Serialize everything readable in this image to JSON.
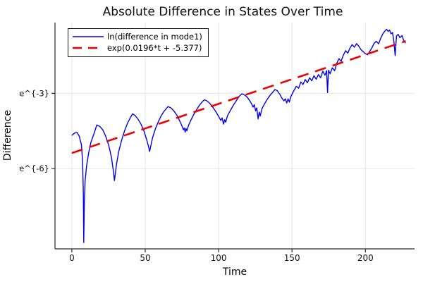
{
  "chart_data": {
    "type": "line",
    "title": "Absolute Difference in States Over Time",
    "xlabel": "Time",
    "ylabel": "Difference",
    "x_axis": {
      "lim": [
        -11.5,
        233.5
      ],
      "ticks": [
        {
          "value": 0,
          "label": "0"
        },
        {
          "value": 50,
          "label": "50"
        },
        {
          "value": 100,
          "label": "100"
        },
        {
          "value": 150,
          "label": "150"
        },
        {
          "value": 200,
          "label": "200"
        }
      ]
    },
    "y_axis": {
      "scale": "ln",
      "lim": [
        -9.2,
        -0.18
      ],
      "ticks": [
        {
          "value": -3,
          "label": "e^{-3}"
        },
        {
          "value": -6,
          "label": "e^{-6}"
        }
      ]
    },
    "grid": {
      "show": true,
      "color": "#e5e5e5"
    },
    "spine_color": "#2b2b2b",
    "legend": {
      "position": "upper-left",
      "background": "#ffffff",
      "border_color": "#1a1a1a"
    },
    "series": [
      {
        "name": "ln(difference in mode1)",
        "color": "#0000ee",
        "style": "solid",
        "width": 1.4,
        "points": [
          [
            0,
            -4.68
          ],
          [
            2,
            -4.58
          ],
          [
            3.5,
            -4.56
          ],
          [
            5,
            -4.7
          ],
          [
            6.5,
            -5.05
          ],
          [
            7.3,
            -5.7
          ],
          [
            7.8,
            -7.0
          ],
          [
            8.1,
            -8.95
          ],
          [
            8.5,
            -7.4
          ],
          [
            9,
            -6.5
          ],
          [
            10,
            -5.9
          ],
          [
            11.5,
            -5.35
          ],
          [
            13,
            -4.95
          ],
          [
            15,
            -4.62
          ],
          [
            17,
            -4.26
          ],
          [
            19,
            -4.32
          ],
          [
            21,
            -4.45
          ],
          [
            23,
            -4.7
          ],
          [
            25,
            -5.05
          ],
          [
            27,
            -5.55
          ],
          [
            28.5,
            -6.2
          ],
          [
            29,
            -6.48
          ],
          [
            29.6,
            -6.2
          ],
          [
            30.5,
            -5.8
          ],
          [
            32,
            -5.3
          ],
          [
            34,
            -4.85
          ],
          [
            36,
            -4.48
          ],
          [
            38,
            -4.18
          ],
          [
            40,
            -3.95
          ],
          [
            41.4,
            -3.82
          ],
          [
            43,
            -3.88
          ],
          [
            45,
            -4.02
          ],
          [
            47,
            -4.22
          ],
          [
            49,
            -4.48
          ],
          [
            51,
            -4.85
          ],
          [
            52.5,
            -5.18
          ],
          [
            53,
            -5.32
          ],
          [
            53.6,
            -5.15
          ],
          [
            55,
            -4.77
          ],
          [
            57,
            -4.4
          ],
          [
            59,
            -4.12
          ],
          [
            61,
            -3.88
          ],
          [
            63,
            -3.7
          ],
          [
            65.5,
            -3.53
          ],
          [
            67.5,
            -3.58
          ],
          [
            69.5,
            -3.7
          ],
          [
            71.5,
            -3.87
          ],
          [
            73.5,
            -4.1
          ],
          [
            75,
            -4.3
          ],
          [
            76,
            -4.45
          ],
          [
            76.6,
            -4.38
          ],
          [
            77.2,
            -4.55
          ],
          [
            77.8,
            -4.4
          ],
          [
            78.4,
            -4.5
          ],
          [
            79.5,
            -4.28
          ],
          [
            81,
            -4.08
          ],
          [
            83,
            -3.85
          ],
          [
            85,
            -3.65
          ],
          [
            87,
            -3.47
          ],
          [
            89,
            -3.33
          ],
          [
            90.4,
            -3.26
          ],
          [
            92,
            -3.3
          ],
          [
            94,
            -3.4
          ],
          [
            96,
            -3.55
          ],
          [
            98,
            -3.72
          ],
          [
            100,
            -3.92
          ],
          [
            101.5,
            -4.08
          ],
          [
            102.4,
            -3.98
          ],
          [
            103.3,
            -4.23
          ],
          [
            104.1,
            -4.05
          ],
          [
            104.8,
            -4.15
          ],
          [
            106,
            -3.9
          ],
          [
            108,
            -3.68
          ],
          [
            110,
            -3.48
          ],
          [
            112,
            -3.3
          ],
          [
            114,
            -3.12
          ],
          [
            115.8,
            -3.02
          ],
          [
            117.5,
            -3.06
          ],
          [
            119.5,
            -3.15
          ],
          [
            121,
            -3.28
          ],
          [
            122.5,
            -3.42
          ],
          [
            123.5,
            -3.55
          ],
          [
            124.3,
            -3.45
          ],
          [
            125.2,
            -3.7
          ],
          [
            126,
            -3.58
          ],
          [
            126.9,
            -4.02
          ],
          [
            127.7,
            -3.75
          ],
          [
            128.4,
            -3.9
          ],
          [
            129.5,
            -3.62
          ],
          [
            131,
            -3.45
          ],
          [
            133,
            -3.25
          ],
          [
            135,
            -3.08
          ],
          [
            137,
            -2.95
          ],
          [
            138.4,
            -2.85
          ],
          [
            140,
            -2.9
          ],
          [
            141.5,
            -3.02
          ],
          [
            143,
            -3.18
          ],
          [
            144.5,
            -3.3
          ],
          [
            145.5,
            -3.22
          ],
          [
            146.4,
            -3.39
          ],
          [
            147.3,
            -3.22
          ],
          [
            148.2,
            -3.35
          ],
          [
            149.3,
            -3.12
          ],
          [
            151,
            -2.92
          ],
          [
            153,
            -2.72
          ],
          [
            154.5,
            -2.8
          ],
          [
            156,
            -2.55
          ],
          [
            157.5,
            -2.65
          ],
          [
            159,
            -2.45
          ],
          [
            160.5,
            -2.58
          ],
          [
            162,
            -2.38
          ],
          [
            163.5,
            -2.5
          ],
          [
            165,
            -2.3
          ],
          [
            166.5,
            -2.44
          ],
          [
            168,
            -2.25
          ],
          [
            169.5,
            -2.38
          ],
          [
            171,
            -2.12
          ],
          [
            172.5,
            -2.28
          ],
          [
            173.6,
            -2.1
          ],
          [
            174.2,
            -2.97
          ],
          [
            174.9,
            -2.08
          ],
          [
            176,
            -2.22
          ],
          [
            177.5,
            -1.98
          ],
          [
            179,
            -2.1
          ],
          [
            180.5,
            -1.8
          ],
          [
            182,
            -1.62
          ],
          [
            183.5,
            -1.72
          ],
          [
            185,
            -1.48
          ],
          [
            186.5,
            -1.3
          ],
          [
            188,
            -1.4
          ],
          [
            189.5,
            -1.2
          ],
          [
            191,
            -1.06
          ],
          [
            192.5,
            -1.16
          ],
          [
            194,
            -1.02
          ],
          [
            195.5,
            -1.12
          ],
          [
            197,
            -1.26
          ],
          [
            198.5,
            -1.34
          ],
          [
            200,
            -1.42
          ],
          [
            201.5,
            -1.46
          ],
          [
            203,
            -1.33
          ],
          [
            204.5,
            -1.18
          ],
          [
            206,
            -1.0
          ],
          [
            207.5,
            -0.93
          ],
          [
            209,
            -1.03
          ],
          [
            210.5,
            -0.8
          ],
          [
            212,
            -0.62
          ],
          [
            213.5,
            -0.5
          ],
          [
            214.5,
            -0.45
          ],
          [
            215.5,
            -0.53
          ],
          [
            216.5,
            -0.48
          ],
          [
            217.5,
            -0.63
          ],
          [
            218.5,
            -0.58
          ],
          [
            219.5,
            -0.98
          ],
          [
            220.3,
            -1.5
          ],
          [
            221.2,
            -0.72
          ],
          [
            222.3,
            -0.65
          ],
          [
            223.5,
            -0.78
          ],
          [
            225,
            -0.7
          ],
          [
            226,
            -0.88
          ],
          [
            227.3,
            -1.0
          ]
        ]
      },
      {
        "name": "exp(0.0196*t + -5.377)",
        "color": "#ee0000",
        "style": "dashed",
        "width": 2.6,
        "dash": "16 10",
        "fit": {
          "slope": 0.0196,
          "intercept": -5.377
        },
        "points": [
          [
            0,
            -5.38
          ],
          [
            227.5,
            -0.92
          ]
        ]
      }
    ]
  }
}
